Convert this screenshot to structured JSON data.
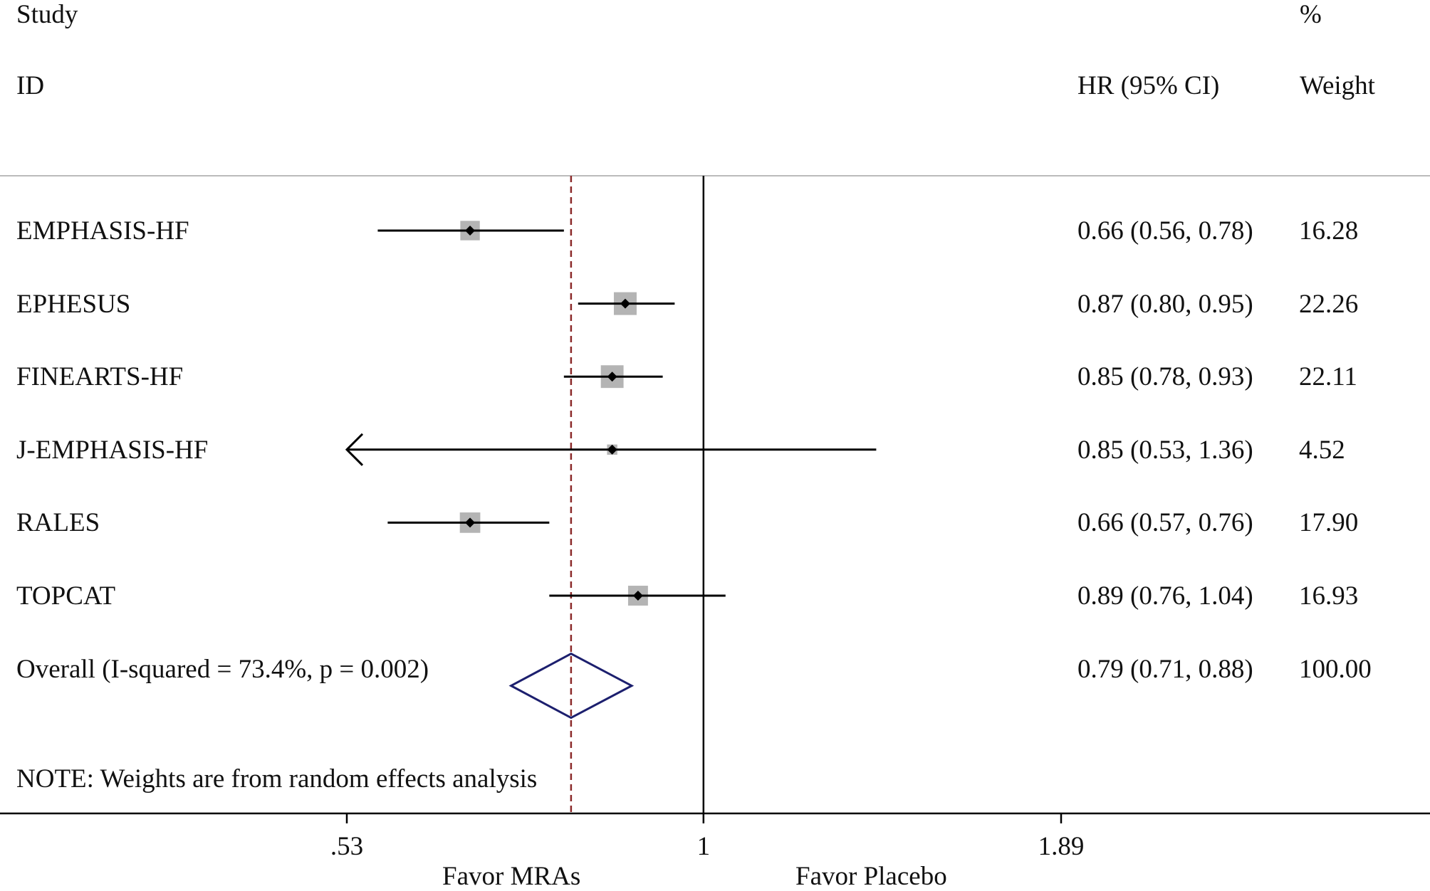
{
  "chart_data": {
    "type": "forest",
    "x_scale": "log",
    "xlim": [
      0.53,
      1.89
    ],
    "xticks": [
      0.53,
      1,
      1.89
    ],
    "xtick_labels": [
      ".53",
      "1",
      "1.89"
    ],
    "null_value": 1,
    "headers": {
      "study_line1": "Study",
      "study_line2": "ID",
      "hr": "HR (95% CI)",
      "weight_line1": "%",
      "weight_line2": "Weight"
    },
    "studies": [
      {
        "id": "EMPHASIS-HF",
        "hr": 0.66,
        "lo": 0.56,
        "hi": 0.78,
        "weight": 16.28,
        "hr_text": "0.66 (0.56, 0.78)",
        "weight_text": "16.28"
      },
      {
        "id": "EPHESUS",
        "hr": 0.87,
        "lo": 0.8,
        "hi": 0.95,
        "weight": 22.26,
        "hr_text": "0.87 (0.80, 0.95)",
        "weight_text": "22.26"
      },
      {
        "id": "FINEARTS-HF",
        "hr": 0.85,
        "lo": 0.78,
        "hi": 0.93,
        "weight": 22.11,
        "hr_text": "0.85 (0.78, 0.93)",
        "weight_text": "22.11"
      },
      {
        "id": "J-EMPHASIS-HF",
        "hr": 0.85,
        "lo": 0.53,
        "hi": 1.36,
        "weight": 4.52,
        "hr_text": "0.85 (0.53, 1.36)",
        "weight_text": "4.52"
      },
      {
        "id": "RALES",
        "hr": 0.66,
        "lo": 0.57,
        "hi": 0.76,
        "weight": 17.9,
        "hr_text": "0.66 (0.57, 0.76)",
        "weight_text": "17.90"
      },
      {
        "id": "TOPCAT",
        "hr": 0.89,
        "lo": 0.76,
        "hi": 1.04,
        "weight": 16.93,
        "hr_text": "0.89 (0.76, 1.04)",
        "weight_text": "16.93"
      }
    ],
    "overall": {
      "label": "Overall  (I-squared = 73.4%, p = 0.002)",
      "hr": 0.79,
      "lo": 0.71,
      "hi": 0.88,
      "hr_text": "0.79 (0.71, 0.88)",
      "weight_text": "100.00"
    },
    "note": "NOTE: Weights are from random effects analysis",
    "favor_left": "Favor MRAs",
    "favor_right": "Favor Placebo",
    "colors": {
      "box": "#b4b4b4",
      "diamond": "#1c1f6e",
      "overall_line": "#8b2a2a",
      "line": "#000000"
    }
  }
}
